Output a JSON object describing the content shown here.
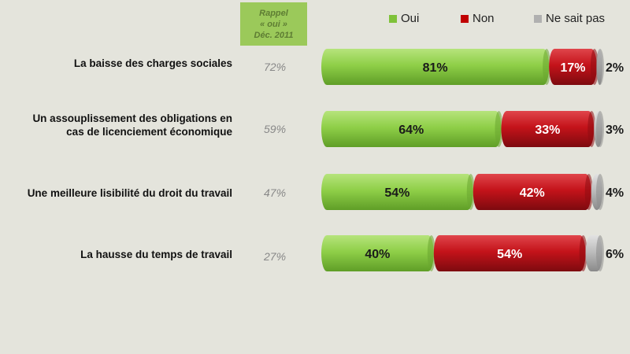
{
  "header": {
    "rappel": [
      "Rappel",
      "« oui »",
      "Déc. 2011"
    ]
  },
  "colors": {
    "oui": "#8fcf48",
    "non": "#c4131a",
    "nsp": "#b7b7b7",
    "rappel_bg": "#9bc95a"
  },
  "legend": [
    {
      "label": "Oui",
      "color": "#7fc23a"
    },
    {
      "label": "Non",
      "color": "#c00000"
    },
    {
      "label": "Ne sait pas",
      "color": "#b0b0b0"
    }
  ],
  "rows": [
    {
      "label_lines": [
        "La baisse des charges sociales"
      ],
      "rappel": "72%",
      "oui": "81%",
      "non": "17%",
      "nsp": "2%"
    },
    {
      "label_lines": [
        "Un assouplissement  des obligations en",
        "cas de licenciement économique"
      ],
      "rappel": "59%",
      "oui": "64%",
      "non": "33%",
      "nsp": "3%"
    },
    {
      "label_lines": [
        "Une meilleure lisibilité du droit du travail"
      ],
      "rappel": "47%",
      "oui": "54%",
      "non": "42%",
      "nsp": "4%"
    },
    {
      "label_lines": [
        "La hausse du temps de travail"
      ],
      "rappel": "27%",
      "oui": "40%",
      "non": "54%",
      "nsp": "6%"
    }
  ],
  "chart_data": {
    "type": "bar",
    "stacked": true,
    "orientation": "horizontal",
    "categories": [
      "La baisse des charges sociales",
      "Un assouplissement  des obligations en cas de licenciement économique",
      "Une meilleure lisibilité du droit du travail",
      "La hausse du temps de travail"
    ],
    "series": [
      {
        "name": "Oui",
        "values": [
          81,
          64,
          54,
          40
        ]
      },
      {
        "name": "Non",
        "values": [
          17,
          33,
          42,
          54
        ]
      },
      {
        "name": "Ne sait pas",
        "values": [
          2,
          3,
          4,
          6
        ]
      }
    ],
    "rappel_oui_dec_2011": [
      72,
      59,
      47,
      27
    ],
    "legend_position": "top-right",
    "grid": false
  }
}
